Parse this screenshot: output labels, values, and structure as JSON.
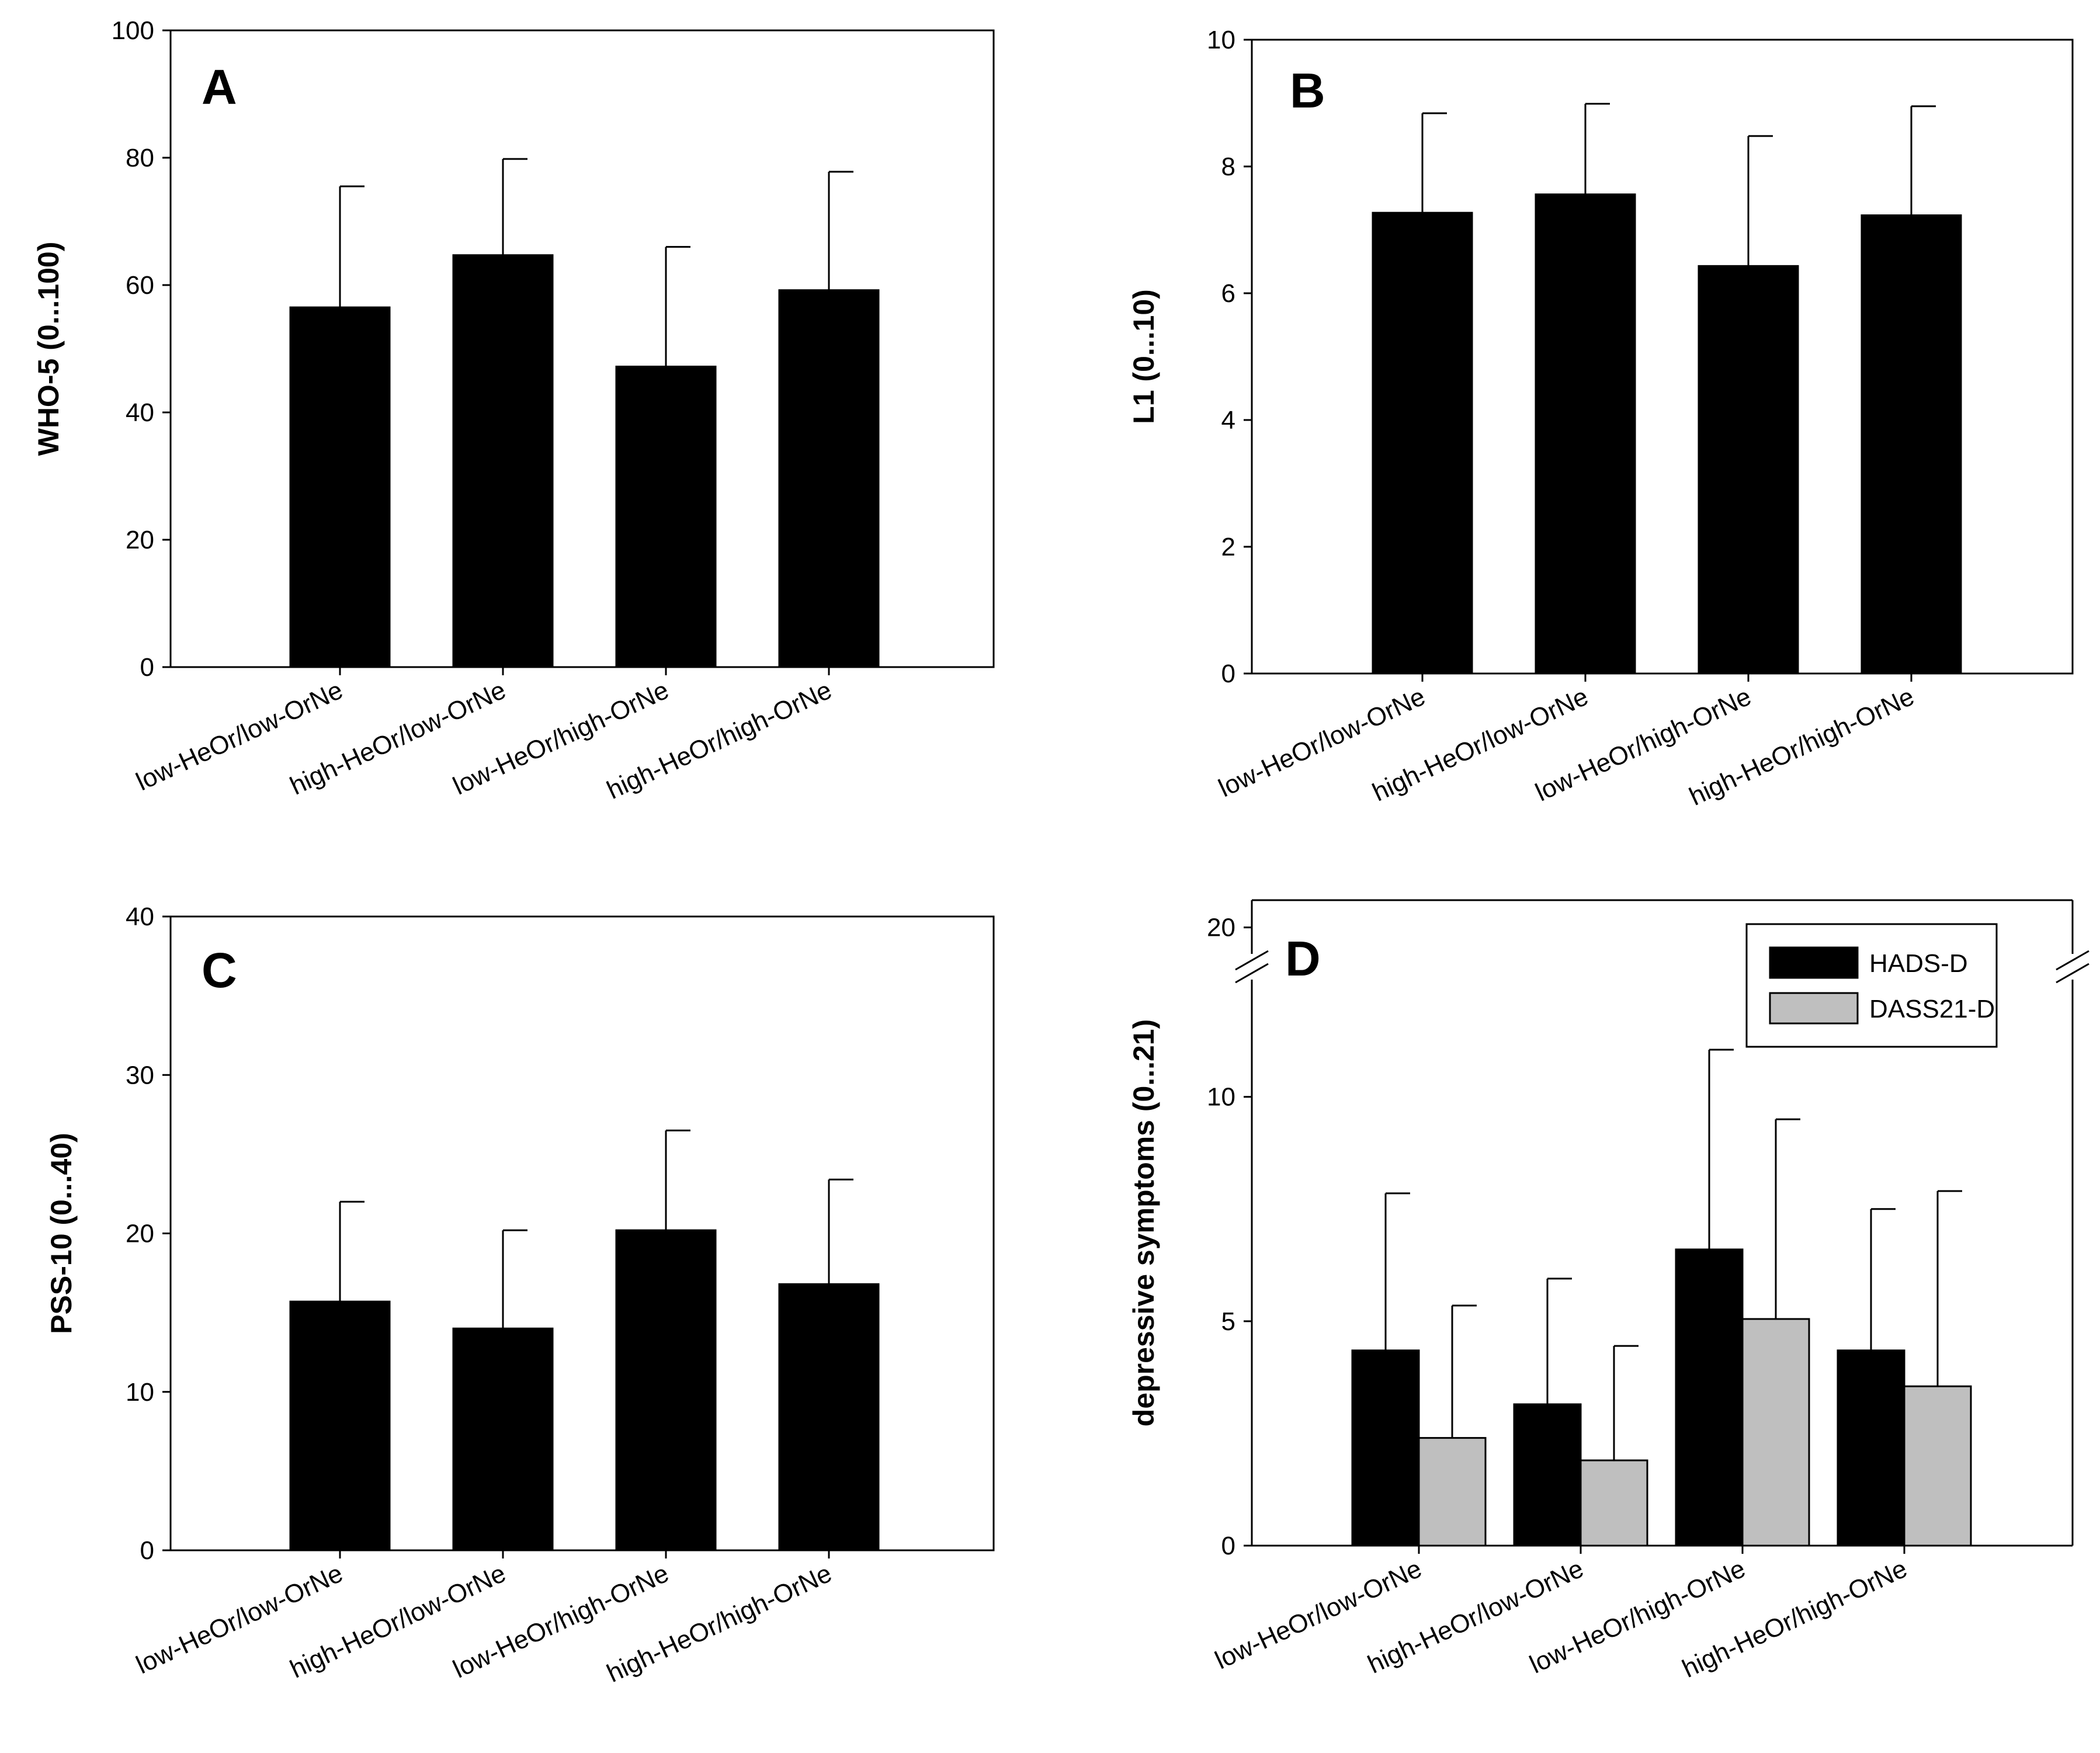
{
  "figure": {
    "background": "#ffffff"
  },
  "chart_data": [
    {
      "panel": "A",
      "type": "bar",
      "title": "",
      "ylabel": "WHO-5 (0...100)",
      "xlabel": "",
      "ylim": [
        0,
        100
      ],
      "yticks": [
        0,
        20,
        40,
        60,
        80,
        100
      ],
      "categories": [
        "low-HeOr/low-OrNe",
        "high-HeOr/low-OrNe",
        "low-HeOr/high-OrNe",
        "high-HeOr/high-OrNe"
      ],
      "series": [
        {
          "name": "WHO-5",
          "color": "#000000",
          "values": [
            56.5,
            64.7,
            47.2,
            59.2
          ],
          "errors": [
            19.0,
            15.1,
            18.8,
            18.6
          ]
        }
      ]
    },
    {
      "panel": "B",
      "type": "bar",
      "title": "",
      "ylabel": "L1 (0...10)",
      "xlabel": "",
      "ylim": [
        0,
        10
      ],
      "yticks": [
        0,
        2,
        4,
        6,
        8,
        10
      ],
      "categories": [
        "low-HeOr/low-OrNe",
        "high-HeOr/low-OrNe",
        "low-HeOr/high-OrNe",
        "high-HeOr/high-OrNe"
      ],
      "series": [
        {
          "name": "L1",
          "color": "#000000",
          "values": [
            7.27,
            7.56,
            6.43,
            7.23
          ],
          "errors": [
            1.57,
            1.43,
            2.05,
            1.72
          ]
        }
      ]
    },
    {
      "panel": "C",
      "type": "bar",
      "title": "",
      "ylabel": "PSS-10 (0...40)",
      "xlabel": "",
      "ylim": [
        0,
        40
      ],
      "yticks": [
        0,
        10,
        20,
        30,
        40
      ],
      "categories": [
        "low-HeOr/low-OrNe",
        "high-HeOr/low-OrNe",
        "low-HeOr/high-OrNe",
        "high-HeOr/high-OrNe"
      ],
      "series": [
        {
          "name": "PSS-10",
          "color": "#000000",
          "values": [
            15.7,
            14.0,
            20.2,
            16.8
          ],
          "errors": [
            6.3,
            6.2,
            6.3,
            6.6
          ]
        }
      ]
    },
    {
      "panel": "D",
      "type": "bar",
      "title": "",
      "ylabel": "depressive symptoms (0...21)",
      "xlabel": "",
      "ylim": [
        0,
        21
      ],
      "axis_break": [
        12.3,
        19.2
      ],
      "yticks": [
        0,
        5,
        10,
        20
      ],
      "categories": [
        "low-HeOr/low-OrNe",
        "high-HeOr/low-OrNe",
        "low-HeOr/high-OrNe",
        "high-HeOr/high-OrNe"
      ],
      "legend_position": "top-right",
      "series": [
        {
          "name": "HADS-D",
          "color": "#000000",
          "values": [
            4.35,
            3.15,
            6.6,
            4.35
          ],
          "errors": [
            3.5,
            2.8,
            4.45,
            3.15
          ]
        },
        {
          "name": "DASS21-D",
          "color": "#bfbfbf",
          "values": [
            2.4,
            1.9,
            5.05,
            3.55
          ],
          "errors": [
            2.95,
            2.55,
            4.45,
            4.35
          ]
        }
      ]
    }
  ]
}
